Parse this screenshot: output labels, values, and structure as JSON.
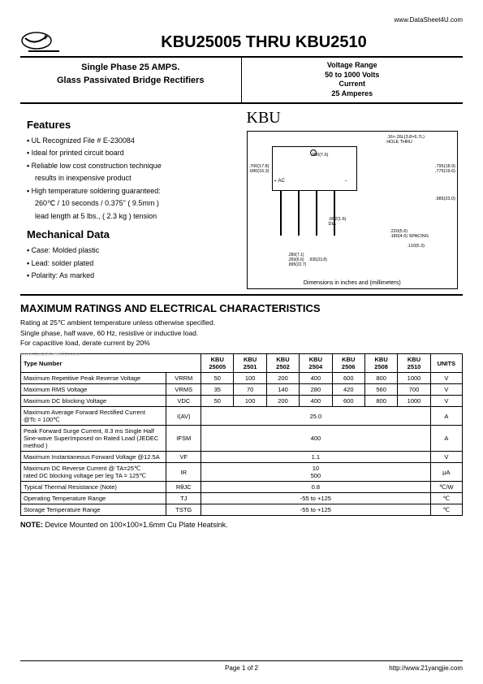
{
  "urls": {
    "top": "www.DataSheet4U.com",
    "bottom": "http://www.21yangjie.com"
  },
  "header": {
    "title": "KBU25005 THRU KBU2510",
    "sub_left_1": "Single Phase 25 AMPS.",
    "sub_left_2": "Glass Passivated Bridge Rectifiers",
    "vr_label": "Voltage Range",
    "vr_value": "50 to 1000 Volts",
    "cur_label": "Current",
    "cur_value": "25 Amperes"
  },
  "features": {
    "heading": "Features",
    "items": [
      "UL Recognized File # E-230084",
      "Ideal for printed circuit board",
      "Reliable low cost construction technique",
      "results in inexpensive product",
      "High temperature soldering guaranteed:",
      "260℃ / 10 seconds / 0.375\" ( 9.5mm )",
      "lead length at 5 lbs., ( 2.3 kg ) tension"
    ]
  },
  "mech": {
    "heading": "Mechanical Data",
    "items": [
      "Case: Molded plastic",
      "Lead: solder plated",
      "Polarity: As marked"
    ]
  },
  "diagram": {
    "kbu": "KBU",
    "holethru": ".16×.26L(3.8×6.7L)\nHOLE THRU",
    "dim_300": ".300(7.6)",
    "dim_700": ".700(17.8)\n.680(16.3)",
    "dim_795": ".795(18.9)\n.775(19.6)",
    "dim_985": ".985(23.0)",
    "ac": "AC",
    "dia": ".062(1.6)\nDIA",
    "spacing": ".220(5.6)\n.180(4.6)",
    "spacing_lbl": "SPACING",
    "dim_110": ".110(5.3)",
    "dim_280": ".280(7.1)\n.260(6.6)",
    "dim_935": ".935(23.8)\n.895(22.7)",
    "caption": "Dimensions in inches and (millimeters)"
  },
  "ratings": {
    "heading": "MAXIMUM RATINGS AND ELECTRICAL CHARACTERISTICS",
    "note1": "Rating at 25℃ ambient temperature unless otherwise specified.",
    "note2": "Single phase, half wave, 60 Hz, resistive or inductive load.",
    "note3": "For capacitive load, derate current by 20%",
    "watermark": "www.DataSheet4U.com",
    "type_hdr": "Type Number",
    "units_hdr": "UNITS",
    "models": [
      "KBU\n25005",
      "KBU\n2501",
      "KBU\n2502",
      "KBU\n2504",
      "KBU\n2506",
      "KBU\n2508",
      "KBU\n2510"
    ],
    "rows": [
      {
        "param": "Maximum Repetitive Peak Reverse Voltage",
        "sym": "VRRM",
        "vals": [
          "50",
          "100",
          "200",
          "400",
          "600",
          "800",
          "1000"
        ],
        "unit": "V"
      },
      {
        "param": "Maximum RMS Voltage",
        "sym": "VRMS",
        "vals": [
          "35",
          "70",
          "140",
          "280",
          "420",
          "560",
          "700"
        ],
        "unit": "V"
      },
      {
        "param": "Maximum DC blocking Voltage",
        "sym": "VDC",
        "vals": [
          "50",
          "100",
          "200",
          "400",
          "600",
          "800",
          "1000"
        ],
        "unit": "V"
      },
      {
        "param": "Maximum Average Forward Rectified Current\n@Tc = 100℃",
        "sym": "I(AV)",
        "span": "25.0",
        "unit": "A"
      },
      {
        "param": "Peak Forward Surge Current, 8.3 ms Single Half Sine-wave SuperImposed on Rated Load (JEDEC method )",
        "sym": "IFSM",
        "span": "400",
        "unit": "A"
      },
      {
        "param": "Maximum Instantaneous Forward Voltage @12.5A",
        "sym": "VF",
        "span": "1.1",
        "unit": "V"
      },
      {
        "param": "Maximum DC Reverse Current @ TA=25℃\nrated DC blocking voltage per leg TA = 125℃",
        "sym": "IR",
        "span": "10\n500",
        "unit": "μA"
      },
      {
        "param": "Typical Thermal Resistance (Note)",
        "sym": "RθJC",
        "span": "0.8",
        "unit": "℃/W"
      },
      {
        "param": "Operating Temperature Range",
        "sym": "TJ",
        "span": "-55 to +125",
        "unit": "℃"
      },
      {
        "param": "Storage Temperature Range",
        "sym": "TSTG",
        "span": "-55 to +125",
        "unit": "℃"
      }
    ]
  },
  "note": {
    "label": "NOTE:",
    "text": "Device Mounted on 100×100×1.6mm Cu Plate Heatsink."
  },
  "footer": {
    "page": "Page 1 of 2"
  }
}
